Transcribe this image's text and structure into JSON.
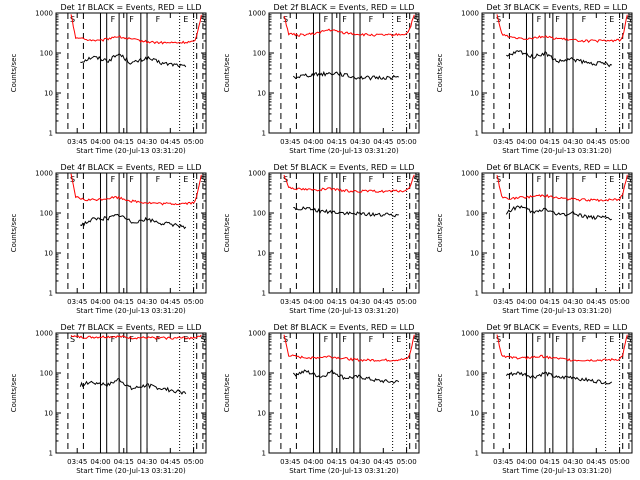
{
  "colors": {
    "events": "#000000",
    "lld": "#ff0000",
    "frame": "#000000",
    "background": "#ffffff"
  },
  "x_tick_labels": [
    "03:45",
    "04:00",
    "04:15",
    "04:30",
    "04:45",
    "05:00"
  ],
  "y_tick_labels": [
    "1",
    "10",
    "100",
    "1000"
  ],
  "chart_data": [
    {
      "type": "line",
      "title": "Det 1f BLACK = Events, RED = LLD",
      "xlabel": "Start Time (20-Jul-13 03:31:20)",
      "ylabel": "Counts/sec",
      "x_ticks": [
        "03:45",
        "04:00",
        "04:15",
        "04:30",
        "04:45",
        "05:00"
      ],
      "ylim": [
        1,
        1000
      ],
      "yscale": "log",
      "segment_labels": [
        "S",
        "F",
        "F",
        "F",
        "E",
        "S"
      ],
      "series": [
        {
          "name": "Events",
          "x": [
            "03:47",
            "03:55",
            "04:05",
            "04:12",
            "04:20",
            "04:30",
            "04:40",
            "04:50",
            "04:55"
          ],
          "values": [
            60,
            80,
            65,
            95,
            55,
            75,
            55,
            50,
            45
          ]
        },
        {
          "name": "LLD",
          "x": [
            "03:41",
            "03:44",
            "03:50",
            "04:00",
            "04:10",
            "04:20",
            "04:30",
            "04:40",
            "04:50",
            "05:00",
            "05:02",
            "05:05"
          ],
          "values": [
            900,
            250,
            220,
            200,
            260,
            220,
            190,
            180,
            180,
            190,
            260,
            900
          ]
        }
      ]
    },
    {
      "type": "line",
      "title": "Det 2f BLACK = Events, RED = LLD",
      "xlabel": "Start Time (20-Jul-13 03:31:20)",
      "ylabel": "Counts/sec",
      "x_ticks": [
        "03:45",
        "04:00",
        "04:15",
        "04:30",
        "04:45",
        "05:00"
      ],
      "ylim": [
        1,
        1000
      ],
      "yscale": "log",
      "segment_labels": [
        "S",
        "F",
        "F",
        "F",
        "E",
        "S"
      ],
      "series": [
        {
          "name": "Events",
          "x": [
            "03:47",
            "03:55",
            "04:05",
            "04:15",
            "04:25",
            "04:35",
            "04:45",
            "04:55"
          ],
          "values": [
            25,
            28,
            30,
            32,
            25,
            24,
            24,
            25
          ]
        },
        {
          "name": "LLD",
          "x": [
            "03:41",
            "03:44",
            "03:50",
            "04:00",
            "04:10",
            "04:20",
            "04:30",
            "04:40",
            "04:50",
            "05:00",
            "05:02",
            "05:05"
          ],
          "values": [
            900,
            300,
            280,
            300,
            380,
            320,
            290,
            280,
            280,
            300,
            400,
            900
          ]
        }
      ]
    },
    {
      "type": "line",
      "title": "Det 3f BLACK = Events, RED = LLD",
      "xlabel": "Start Time (20-Jul-13 03:31:20)",
      "ylabel": "Counts/sec",
      "x_ticks": [
        "03:45",
        "04:00",
        "04:15",
        "04:30",
        "04:45",
        "05:00"
      ],
      "ylim": [
        1,
        1000
      ],
      "yscale": "log",
      "segment_labels": [
        "S",
        "F",
        "F",
        "F",
        "E",
        "S"
      ],
      "series": [
        {
          "name": "Events",
          "x": [
            "03:47",
            "03:55",
            "04:05",
            "04:12",
            "04:20",
            "04:30",
            "04:40",
            "04:50",
            "04:55"
          ],
          "values": [
            80,
            110,
            80,
            100,
            60,
            70,
            55,
            55,
            50
          ]
        },
        {
          "name": "LLD",
          "x": [
            "03:41",
            "03:44",
            "03:50",
            "04:00",
            "04:10",
            "04:20",
            "04:30",
            "04:40",
            "04:50",
            "05:00",
            "05:02",
            "05:05"
          ],
          "values": [
            900,
            300,
            250,
            230,
            260,
            230,
            210,
            200,
            200,
            210,
            250,
            900
          ]
        }
      ]
    },
    {
      "type": "line",
      "title": "Det 4f BLACK = Events, RED = LLD",
      "xlabel": "Start Time (20-Jul-13 03:31:20)",
      "ylabel": "Counts/sec",
      "x_ticks": [
        "03:45",
        "04:00",
        "04:15",
        "04:30",
        "04:45",
        "05:00"
      ],
      "ylim": [
        1,
        1000
      ],
      "yscale": "log",
      "segment_labels": [
        "S",
        "F",
        "F",
        "F",
        "E",
        "S"
      ],
      "series": [
        {
          "name": "Events",
          "x": [
            "03:47",
            "03:55",
            "04:05",
            "04:12",
            "04:20",
            "04:30",
            "04:40",
            "04:50",
            "04:55"
          ],
          "values": [
            50,
            70,
            75,
            90,
            60,
            70,
            55,
            50,
            45
          ]
        },
        {
          "name": "LLD",
          "x": [
            "03:41",
            "03:44",
            "03:50",
            "04:00",
            "04:10",
            "04:20",
            "04:30",
            "04:40",
            "04:50",
            "05:00",
            "05:02",
            "05:05"
          ],
          "values": [
            900,
            250,
            210,
            220,
            250,
            200,
            180,
            170,
            170,
            180,
            250,
            900
          ]
        }
      ]
    },
    {
      "type": "line",
      "title": "Det 5f BLACK = Events, RED = LLD",
      "xlabel": "Start Time (20-Jul-13 03:31:20)",
      "ylabel": "Counts/sec",
      "x_ticks": [
        "03:45",
        "04:00",
        "04:15",
        "04:30",
        "04:45",
        "05:00"
      ],
      "ylim": [
        1,
        1000
      ],
      "yscale": "log",
      "segment_labels": [
        "S",
        "F",
        "F",
        "F",
        "E",
        "S"
      ],
      "series": [
        {
          "name": "Events",
          "x": [
            "03:47",
            "03:55",
            "04:05",
            "04:15",
            "04:25",
            "04:35",
            "04:45",
            "04:55"
          ],
          "values": [
            130,
            130,
            110,
            105,
            95,
            95,
            90,
            90
          ]
        },
        {
          "name": "LLD",
          "x": [
            "03:41",
            "03:44",
            "03:50",
            "04:00",
            "04:10",
            "04:20",
            "04:30",
            "04:40",
            "04:50",
            "05:00",
            "05:02",
            "05:05"
          ],
          "values": [
            900,
            450,
            400,
            380,
            400,
            360,
            350,
            350,
            350,
            360,
            450,
            900
          ]
        }
      ]
    },
    {
      "type": "line",
      "title": "Det 6f BLACK = Events, RED = LLD",
      "xlabel": "Start Time (20-Jul-13 03:31:20)",
      "ylabel": "Counts/sec",
      "x_ticks": [
        "03:45",
        "04:00",
        "04:15",
        "04:30",
        "04:45",
        "05:00"
      ],
      "ylim": [
        1,
        1000
      ],
      "yscale": "log",
      "segment_labels": [
        "S",
        "F",
        "F",
        "F",
        "E",
        "S"
      ],
      "series": [
        {
          "name": "Events",
          "x": [
            "03:47",
            "03:55",
            "04:05",
            "04:12",
            "04:20",
            "04:30",
            "04:40",
            "04:50",
            "04:55"
          ],
          "values": [
            100,
            150,
            100,
            130,
            90,
            100,
            80,
            75,
            70
          ]
        },
        {
          "name": "LLD",
          "x": [
            "03:41",
            "03:44",
            "03:50",
            "04:00",
            "04:10",
            "04:20",
            "04:30",
            "04:40",
            "04:50",
            "05:00",
            "05:02",
            "05:05"
          ],
          "values": [
            900,
            250,
            230,
            250,
            280,
            240,
            220,
            210,
            210,
            220,
            300,
            900
          ]
        }
      ]
    },
    {
      "type": "line",
      "title": "Det 7f BLACK = Events, RED = LLD",
      "xlabel": "Start Time (20-Jul-13 03:31:20)",
      "ylabel": "Counts/sec",
      "x_ticks": [
        "03:45",
        "04:00",
        "04:15",
        "04:30",
        "04:45",
        "05:00"
      ],
      "ylim": [
        1,
        1000
      ],
      "yscale": "log",
      "segment_labels": [
        "S",
        "F",
        "F",
        "F",
        "E",
        "S"
      ],
      "series": [
        {
          "name": "Events",
          "x": [
            "03:47",
            "03:55",
            "04:05",
            "04:12",
            "04:20",
            "04:30",
            "04:40",
            "04:50",
            "04:55"
          ],
          "values": [
            50,
            60,
            50,
            70,
            40,
            50,
            40,
            35,
            30
          ]
        },
        {
          "name": "LLD",
          "x": [
            "03:41",
            "03:44",
            "03:50",
            "04:00",
            "04:10",
            "04:20",
            "04:30",
            "04:40",
            "04:50",
            "05:00",
            "05:02",
            "05:05"
          ],
          "values": [
            900,
            800,
            780,
            800,
            820,
            760,
            760,
            750,
            750,
            760,
            800,
            900
          ]
        }
      ]
    },
    {
      "type": "line",
      "title": "Det 8f BLACK = Events, RED = LLD",
      "xlabel": "Start Time (20-Jul-13 03:31:20)",
      "ylabel": "Counts/sec",
      "x_ticks": [
        "03:45",
        "04:00",
        "04:15",
        "04:30",
        "04:45",
        "05:00"
      ],
      "ylim": [
        1,
        1000
      ],
      "yscale": "log",
      "segment_labels": [
        "S",
        "F",
        "F",
        "F",
        "E",
        "S"
      ],
      "series": [
        {
          "name": "Events",
          "x": [
            "03:47",
            "03:55",
            "04:05",
            "04:12",
            "04:20",
            "04:30",
            "04:40",
            "04:50",
            "04:55"
          ],
          "values": [
            90,
            110,
            80,
            110,
            75,
            80,
            65,
            60,
            60
          ]
        },
        {
          "name": "LLD",
          "x": [
            "03:41",
            "03:44",
            "03:50",
            "04:00",
            "04:10",
            "04:20",
            "04:30",
            "04:40",
            "04:50",
            "05:00",
            "05:02",
            "05:05"
          ],
          "values": [
            900,
            280,
            250,
            240,
            260,
            230,
            210,
            210,
            210,
            220,
            280,
            900
          ]
        }
      ]
    },
    {
      "type": "line",
      "title": "Det 9f BLACK = Events, RED = LLD",
      "xlabel": "Start Time (20-Jul-13 03:31:20)",
      "ylabel": "Counts/sec",
      "x_ticks": [
        "03:45",
        "04:00",
        "04:15",
        "04:30",
        "04:45",
        "05:00"
      ],
      "ylim": [
        1,
        1000
      ],
      "yscale": "log",
      "segment_labels": [
        "S",
        "F",
        "F",
        "F",
        "E",
        "S"
      ],
      "series": [
        {
          "name": "Events",
          "x": [
            "03:47",
            "03:55",
            "04:05",
            "04:12",
            "04:20",
            "04:30",
            "04:40",
            "04:50",
            "04:55"
          ],
          "values": [
            90,
            100,
            80,
            100,
            75,
            80,
            65,
            60,
            60
          ]
        },
        {
          "name": "LLD",
          "x": [
            "03:41",
            "03:44",
            "03:50",
            "04:00",
            "04:10",
            "04:20",
            "04:30",
            "04:40",
            "04:50",
            "05:00",
            "05:02",
            "05:05"
          ],
          "values": [
            900,
            280,
            240,
            240,
            260,
            230,
            210,
            210,
            210,
            220,
            280,
            900
          ]
        }
      ]
    }
  ]
}
